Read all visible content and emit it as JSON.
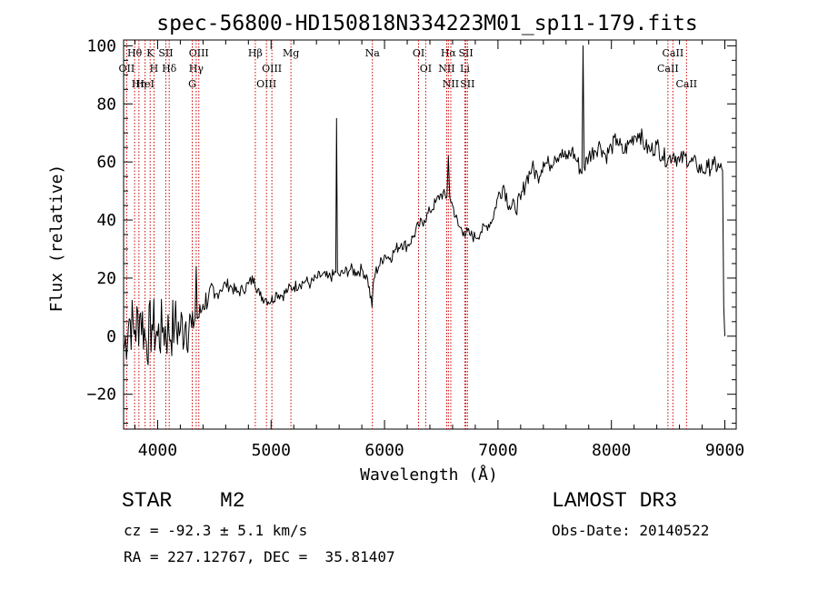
{
  "chart_data": {
    "type": "line",
    "title": "spec-56800-HD150818N334223M01_sp11-179.fits",
    "xlabel": "Wavelength (Å)",
    "ylabel": "Flux (relative)",
    "xlim": [
      3700,
      9100
    ],
    "ylim": [
      -32,
      102
    ],
    "xticks": [
      4000,
      5000,
      6000,
      7000,
      8000,
      9000
    ],
    "yticks": [
      -20,
      0,
      20,
      40,
      60,
      80,
      100
    ],
    "grid": false,
    "series": [
      {
        "name": "flux",
        "x": [
          3700,
          3750,
          3800,
          3850,
          3900,
          3950,
          4000,
          4050,
          4100,
          4150,
          4200,
          4250,
          4300,
          4330,
          4340,
          4350,
          4380,
          4400,
          4450,
          4500,
          4550,
          4600,
          4650,
          4700,
          4750,
          4800,
          4850,
          4900,
          4950,
          5000,
          5050,
          5100,
          5150,
          5200,
          5250,
          5300,
          5350,
          5400,
          5450,
          5500,
          5550,
          5570,
          5577,
          5585,
          5600,
          5650,
          5700,
          5750,
          5800,
          5850,
          5890,
          5900,
          5920,
          5950,
          6000,
          6050,
          6100,
          6150,
          6200,
          6250,
          6300,
          6350,
          6400,
          6450,
          6500,
          6550,
          6563,
          6575,
          6600,
          6650,
          6700,
          6750,
          6800,
          6850,
          6900,
          6950,
          7000,
          7050,
          7100,
          7150,
          7200,
          7250,
          7300,
          7350,
          7400,
          7450,
          7500,
          7550,
          7600,
          7650,
          7700,
          7740,
          7750,
          7760,
          7800,
          7850,
          7900,
          7950,
          8000,
          8050,
          8100,
          8150,
          8200,
          8250,
          8300,
          8350,
          8400,
          8450,
          8500,
          8550,
          8600,
          8650,
          8700,
          8750,
          8800,
          8850,
          8900,
          8950,
          8980,
          8990,
          9000
        ],
        "y": [
          -5,
          6,
          2,
          8,
          -2,
          4,
          0,
          3,
          1,
          4,
          2,
          5,
          3,
          6,
          24,
          6,
          8,
          11,
          14,
          13,
          16,
          18,
          17,
          15,
          16,
          18,
          20,
          14,
          13,
          12,
          15,
          14,
          16,
          17,
          18,
          19,
          18,
          20,
          21,
          20,
          21,
          22,
          75,
          22,
          21,
          22,
          23,
          22,
          23,
          20,
          10,
          18,
          22,
          24,
          28,
          27,
          30,
          32,
          31,
          34,
          38,
          40,
          43,
          46,
          49,
          48,
          62,
          48,
          45,
          38,
          36,
          35,
          34,
          36,
          38,
          40,
          48,
          52,
          45,
          44,
          47,
          54,
          58,
          55,
          60,
          59,
          62,
          63,
          61,
          64,
          60,
          56,
          100,
          58,
          62,
          64,
          66,
          62,
          65,
          68,
          63,
          66,
          69,
          70,
          65,
          64,
          66,
          62,
          61,
          63,
          60,
          62,
          60,
          59,
          57,
          58,
          59,
          58,
          57,
          10,
          0
        ]
      }
    ],
    "line_markers": [
      {
        "label": "Hθ",
        "wavelength": 3797
      },
      {
        "label": "OII",
        "wavelength": 3727
      },
      {
        "label": "Hη",
        "wavelength": 3835
      },
      {
        "label": "HeI",
        "wavelength": 3889
      },
      {
        "label": "K",
        "wavelength": 3934
      },
      {
        "label": "H",
        "wavelength": 3968
      },
      {
        "label": "SII",
        "wavelength": 4072
      },
      {
        "label": "Hδ",
        "wavelength": 4102
      },
      {
        "label": "OIII",
        "wavelength": 4363
      },
      {
        "label": "Hγ",
        "wavelength": 4340
      },
      {
        "label": "G",
        "wavelength": 4305
      },
      {
        "label": "Hβ",
        "wavelength": 4861
      },
      {
        "label": "OIII",
        "wavelength": 5007
      },
      {
        "label": "OIII",
        "wavelength": 4959
      },
      {
        "label": "Mg",
        "wavelength": 5175
      },
      {
        "label": "Na",
        "wavelength": 5893
      },
      {
        "label": "OI",
        "wavelength": 6300
      },
      {
        "label": "OI",
        "wavelength": 6363
      },
      {
        "label": "Hα",
        "wavelength": 6563
      },
      {
        "label": "NII",
        "wavelength": 6548
      },
      {
        "label": "NII",
        "wavelength": 6584
      },
      {
        "label": "SII",
        "wavelength": 6717
      },
      {
        "label": "Li",
        "wavelength": 6708
      },
      {
        "label": "SII",
        "wavelength": 6731
      },
      {
        "label": "CaII",
        "wavelength": 8542
      },
      {
        "label": "CaII",
        "wavelength": 8498
      },
      {
        "label": "CaII",
        "wavelength": 8662
      }
    ]
  },
  "info": {
    "object_type": "STAR",
    "object_class": "M2",
    "survey": "LAMOST DR3",
    "cz": "cz = -92.3 ± 5.1 km/s",
    "obs_date": "Obs-Date: 20140522",
    "radec": "RA = 227.12767, DEC =  35.81407"
  },
  "colors": {
    "line": "#000000",
    "marker": "#cc0000",
    "background": "#ffffff"
  }
}
